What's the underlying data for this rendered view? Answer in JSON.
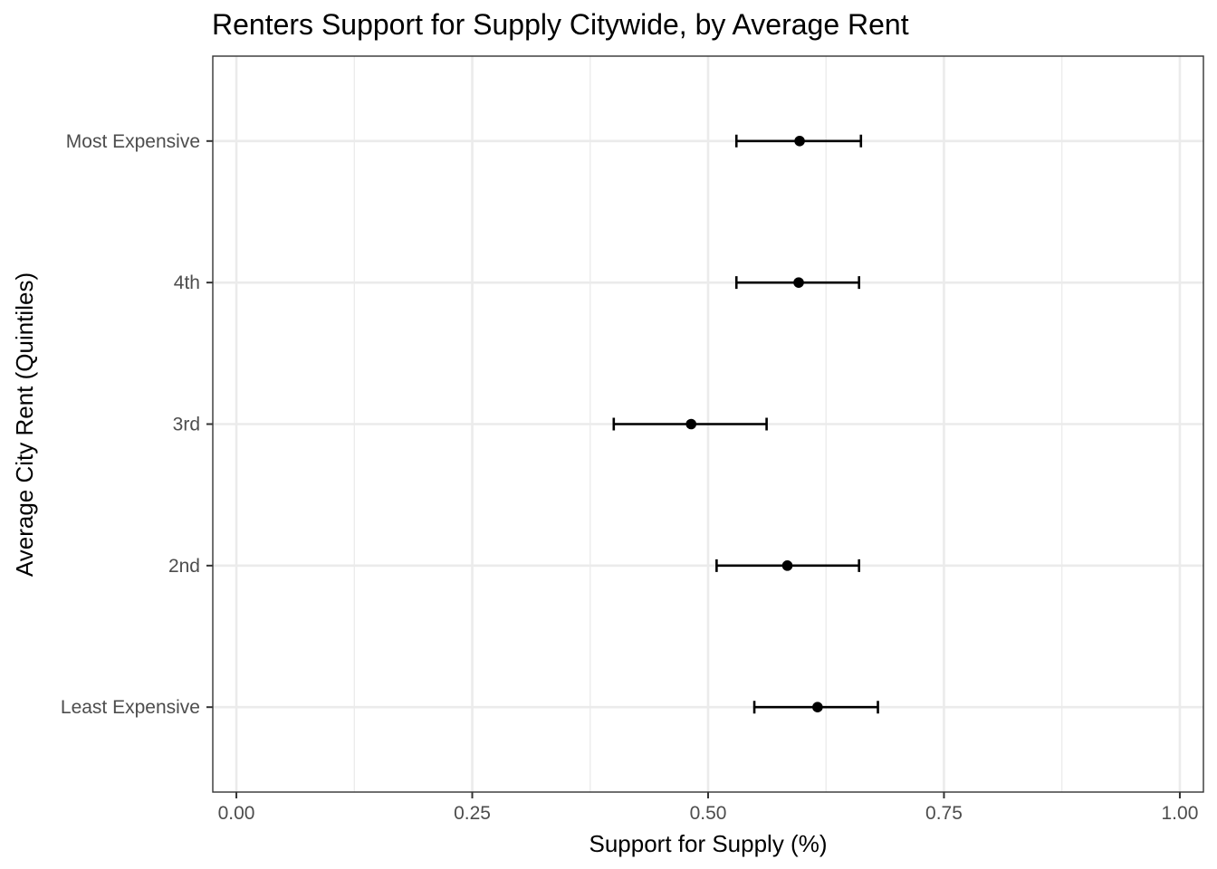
{
  "chart_data": {
    "type": "scatter",
    "title": "Renters Support for Supply Citywide, by Average Rent",
    "xlabel": "Support for Supply (%)",
    "ylabel": "Average City Rent (Quintiles)",
    "xlim": [
      -0.025,
      1.025
    ],
    "x_ticks": [
      0,
      0.25,
      0.5,
      0.75,
      1
    ],
    "x_tick_labels": [
      "0.00",
      "0.25",
      "0.50",
      "0.75",
      "1.00"
    ],
    "x_minor_ticks": [
      0.125,
      0.375,
      0.625,
      0.875
    ],
    "categories": [
      "Least Expensive",
      "2nd",
      "3rd",
      "4th",
      "Most Expensive"
    ],
    "series": [
      {
        "estimate": [
          0.616,
          0.584,
          0.482,
          0.596,
          0.597
        ],
        "lower": [
          0.549,
          0.509,
          0.4,
          0.53,
          0.53
        ],
        "upper": [
          0.68,
          0.66,
          0.562,
          0.66,
          0.662
        ]
      }
    ],
    "grid": true,
    "legend": "none",
    "theme": "bw"
  }
}
